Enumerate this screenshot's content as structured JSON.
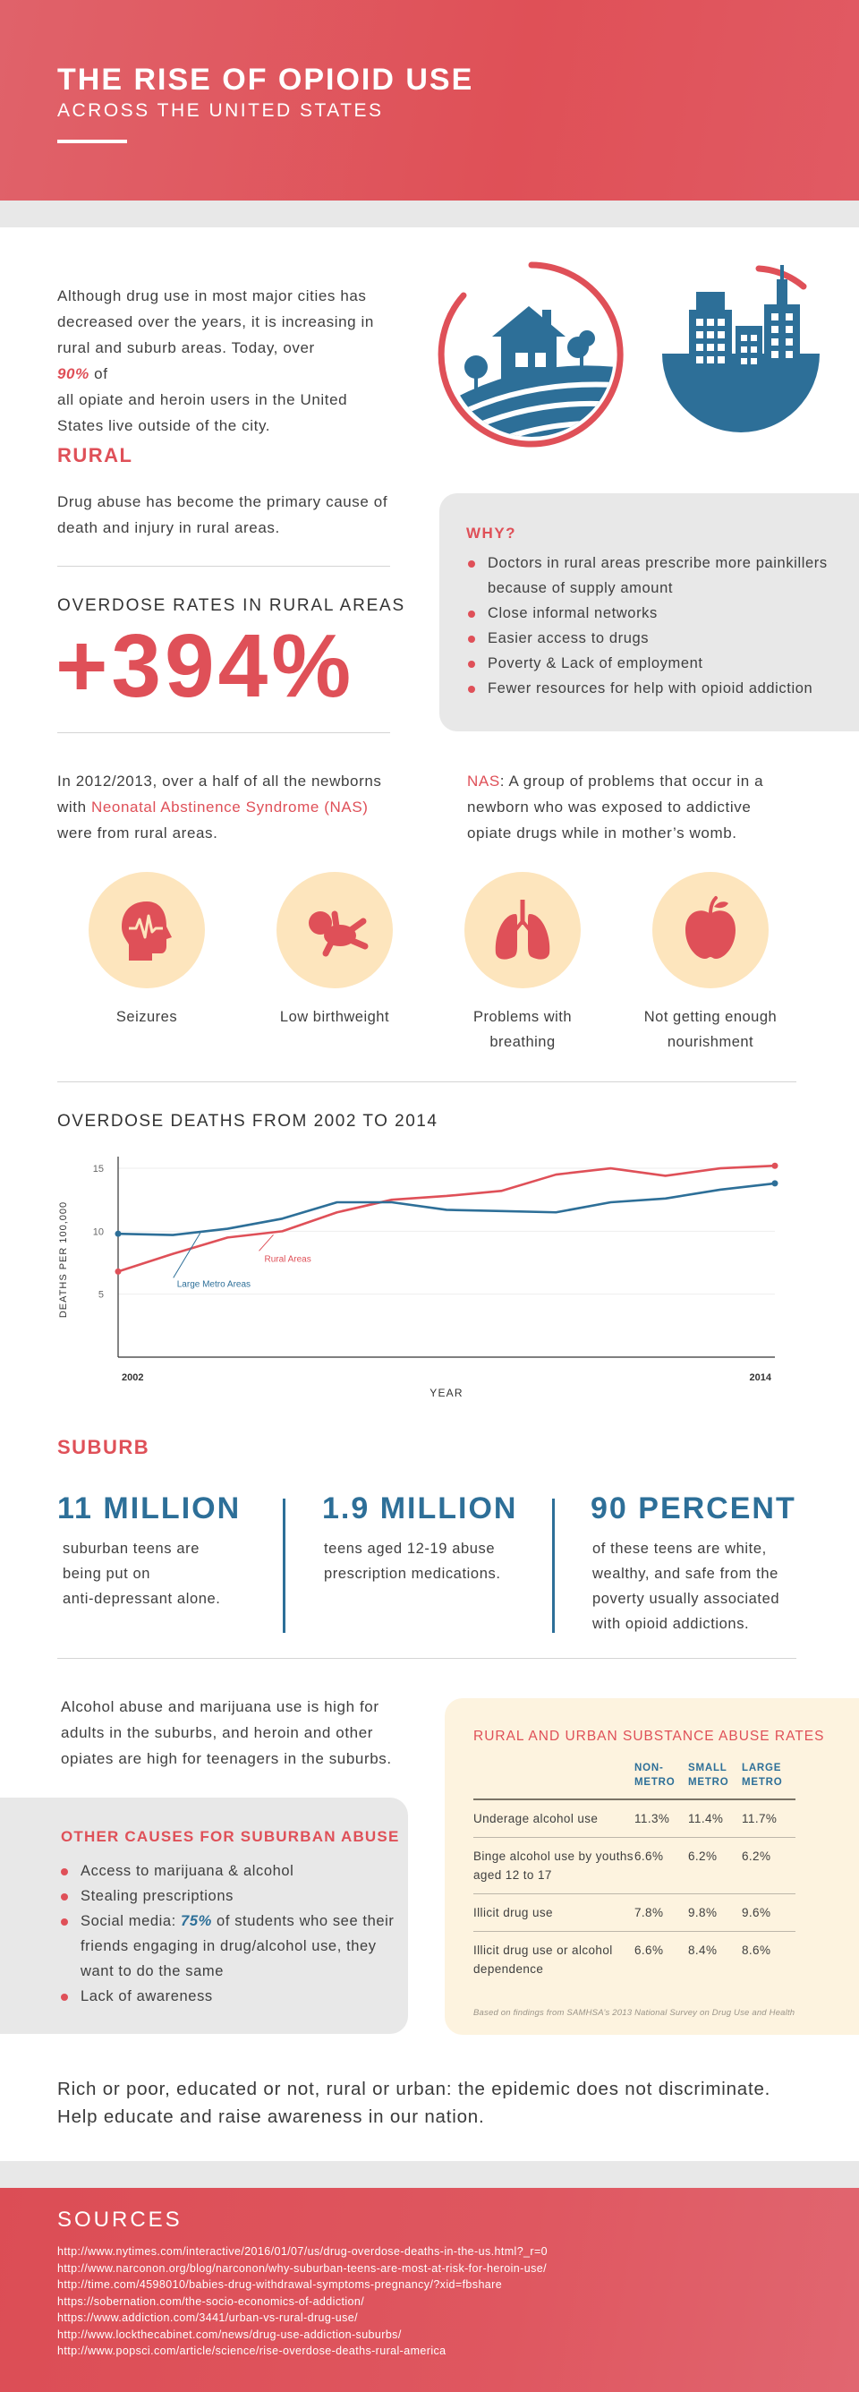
{
  "header": {
    "title": "THE RISE OF OPIOID USE",
    "subtitle": "ACROSS THE UNITED STATES"
  },
  "intro": {
    "lines": [
      "Although drug use in most major cities has",
      "decreased over the years, it is increasing in",
      "rural and suburb areas. Today, over ",
      " of",
      "all opiate and heroin users in the United",
      "States live outside of the city."
    ],
    "highlight": "90%"
  },
  "rural": {
    "title": "RURAL",
    "lines": [
      "Drug abuse has become the primary cause of",
      "death and injury in rural areas."
    ],
    "overdose_label": "OVERDOSE RATES IN RURAL AREAS",
    "overdose_value": "+394%",
    "why": {
      "title": "WHY?",
      "items": [
        "Doctors in rural areas prescribe more painkillers because of supply amount",
        "Close informal networks",
        "Easier access to drugs",
        "Poverty & Lack of employment",
        "Fewer resources for help with opioid addiction"
      ]
    },
    "nas_text": {
      "l1": "In 2012/2013, over a half of all the newborns",
      "l2_pre": "with ",
      "l2_link": "Neonatal Abstinence Syndrome (NAS)",
      "l3": "were from rural areas."
    },
    "nas_def": {
      "term": "NAS",
      "l1": ": A group of problems that occur in a",
      "l2": "newborn who was exposed to addictive",
      "l3": "opiate drugs while in mother’s womb."
    },
    "symptoms": [
      {
        "icon": "head-pulse-icon",
        "label1": "Seizures",
        "label2": ""
      },
      {
        "icon": "baby-icon",
        "label1": "Low birthweight",
        "label2": ""
      },
      {
        "icon": "lungs-icon",
        "label1": "Problems with",
        "label2": "breathing"
      },
      {
        "icon": "apple-icon",
        "label1": "Not getting enough",
        "label2": "nourishment"
      }
    ]
  },
  "chart_data": {
    "type": "line",
    "title": "OVERDOSE DEATHS FROM 2002 TO 2014",
    "xlabel": "YEAR",
    "ylabel": "DEATHS PER 100,000",
    "x": [
      2002,
      2003,
      2004,
      2005,
      2006,
      2007,
      2008,
      2009,
      2010,
      2011,
      2012,
      2013,
      2014
    ],
    "x_tick_labels": [
      "2002",
      "2014"
    ],
    "y_ticks": [
      5,
      10,
      15
    ],
    "ylim": [
      0,
      15.5
    ],
    "series": [
      {
        "name": "Rural Areas",
        "color": "#df5058",
        "values": [
          6.8,
          8.2,
          9.5,
          10.0,
          11.5,
          12.5,
          12.8,
          13.2,
          14.5,
          15.0,
          14.4,
          15.0,
          15.2
        ]
      },
      {
        "name": "Large Metro Areas",
        "color": "#2d6f98",
        "values": [
          9.8,
          9.7,
          10.2,
          11.0,
          12.3,
          12.3,
          11.7,
          11.6,
          11.5,
          12.3,
          12.6,
          13.3,
          13.8
        ]
      }
    ],
    "grid": true
  },
  "suburb": {
    "title": "SUBURB",
    "stats": [
      {
        "value": "11 MILLION",
        "lines": [
          "suburban teens are",
          "being put on",
          "anti-depressant alone."
        ]
      },
      {
        "value": "1.9 MILLION",
        "lines": [
          "teens aged 12-19 abuse",
          "prescription medications."
        ]
      },
      {
        "value": "90 PERCENT",
        "lines": [
          "of these teens are white,",
          "wealthy, and safe from the",
          "poverty usually associated",
          "with opioid addictions."
        ]
      }
    ],
    "alcohol_text": [
      "Alcohol abuse and marijuana use is high for",
      "adults in the suburbs, and heroin and other",
      "opiates are high for teenagers in the suburbs."
    ],
    "other_causes": {
      "title": "OTHER CAUSES FOR SUBURBAN ABUSE",
      "item1": "Access to marijuana & alcohol",
      "item2": "Stealing prescriptions",
      "item3_pre": "Social media: ",
      "item3_hl": "75%",
      "item3_post": " of students who see their friends engaging in drug/alcohol use, they want to do the same",
      "item4": "Lack of awareness"
    },
    "table": {
      "title": "RURAL AND URBAN SUBSTANCE ABUSE RATES",
      "headers": [
        {
          "l1": "NON-",
          "l2": "METRO"
        },
        {
          "l1": "SMALL",
          "l2": "METRO"
        },
        {
          "l1": "LARGE",
          "l2": "METRO"
        }
      ],
      "rows": [
        {
          "label": "Underage alcohol use",
          "values": [
            "11.3%",
            "11.4%",
            "11.7%"
          ]
        },
        {
          "label": "Binge alcohol use by youths aged 12 to 17",
          "values": [
            "6.6%",
            "6.2%",
            "6.2%"
          ]
        },
        {
          "label": "Illicit drug use",
          "values": [
            "7.8%",
            "9.8%",
            "9.6%"
          ]
        },
        {
          "label": "Illicit drug use or alcohol dependence",
          "values": [
            "6.6%",
            "8.4%",
            "8.6%"
          ]
        }
      ],
      "note": "Based on findings from SAMHSA’s 2013 National Survey on Drug Use and Health"
    }
  },
  "closing": {
    "l1": "Rich or poor, educated or not, rural or urban: the epidemic does not discriminate.",
    "l2": "Help educate and raise awareness in our nation."
  },
  "sources": {
    "title": "SOURCES",
    "items": [
      "http://www.nytimes.com/interactive/2016/01/07/us/drug-overdose-deaths-in-the-us.html?_r=0",
      "http://www.narconon.org/blog/narconon/why-suburban-teens-are-most-at-risk-for-heroin-use/",
      "http://time.com/4598010/babies-drug-withdrawal-symptoms-pregnancy/?xid=fbshare",
      "https://sobernation.com/the-socio-economics-of-addiction/",
      "https://www.addiction.com/3441/urban-vs-rural-drug-use/",
      "http://www.lockthecabinet.com/news/drug-use-addiction-suburbs/",
      "http://www.popsci.com/article/science/rise-overdose-deaths-rural-america"
    ]
  },
  "colors": {
    "accent": "#df5058",
    "blue": "#2d6f98",
    "cream": "#fde5bd",
    "grey": "#e8e8e8"
  }
}
